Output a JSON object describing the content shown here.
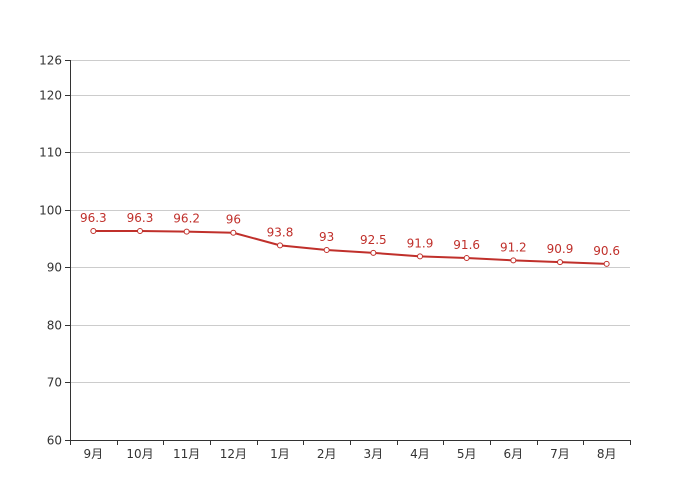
{
  "chart_data": {
    "type": "line",
    "title": "",
    "xlabel": "",
    "ylabel": "",
    "categories": [
      "9月",
      "10月",
      "11月",
      "12月",
      "1月",
      "2月",
      "3月",
      "4月",
      "5月",
      "6月",
      "7月",
      "8月"
    ],
    "series": [
      {
        "values": [
          96.3,
          96.3,
          96.2,
          96,
          93.8,
          93,
          92.5,
          91.9,
          91.6,
          91.2,
          90.9,
          90.6
        ],
        "color": "#c0302b"
      }
    ],
    "ylim": [
      60,
      126
    ],
    "yticks": [
      60,
      70,
      80,
      90,
      100,
      110,
      120,
      126
    ],
    "grid": true,
    "data_labels": true,
    "legend": "none"
  }
}
